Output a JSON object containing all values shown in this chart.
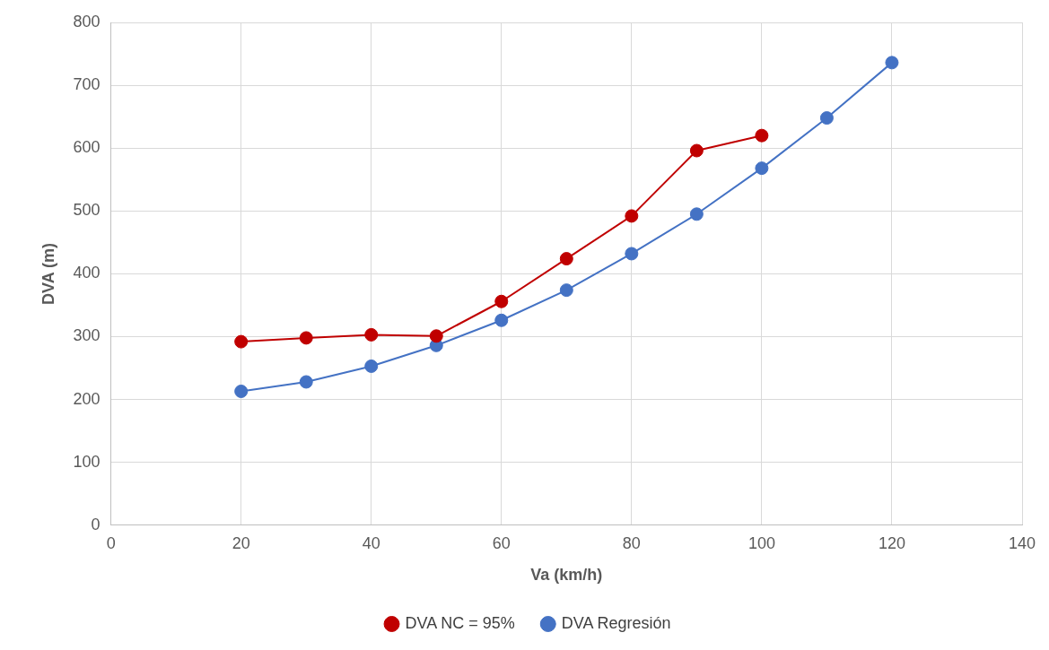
{
  "chart_data": {
    "type": "line",
    "xlabel": "Va (km/h)",
    "ylabel": "DVA (m)",
    "xlim": [
      0,
      140
    ],
    "xticks": [
      0,
      20,
      40,
      60,
      80,
      100,
      120,
      140
    ],
    "ylim": [
      0,
      800
    ],
    "yticks": [
      0,
      100,
      200,
      300,
      400,
      500,
      600,
      700,
      800
    ],
    "grid": true,
    "legend": "bottom",
    "marker": "circle",
    "line_style": "solid",
    "series": [
      {
        "name": "DVA NC = 95%",
        "color": "#c00000",
        "x": [
          20,
          30,
          40,
          50,
          60,
          70,
          80,
          90,
          100
        ],
        "values": [
          292,
          298,
          303,
          301,
          356,
          424,
          492,
          596,
          620
        ]
      },
      {
        "name": "DVA Regresión",
        "color": "#4472c4",
        "x": [
          20,
          30,
          40,
          50,
          60,
          70,
          80,
          90,
          100,
          110,
          120
        ],
        "values": [
          213,
          228,
          253,
          286,
          326,
          374,
          432,
          495,
          568,
          648,
          736
        ]
      }
    ]
  }
}
